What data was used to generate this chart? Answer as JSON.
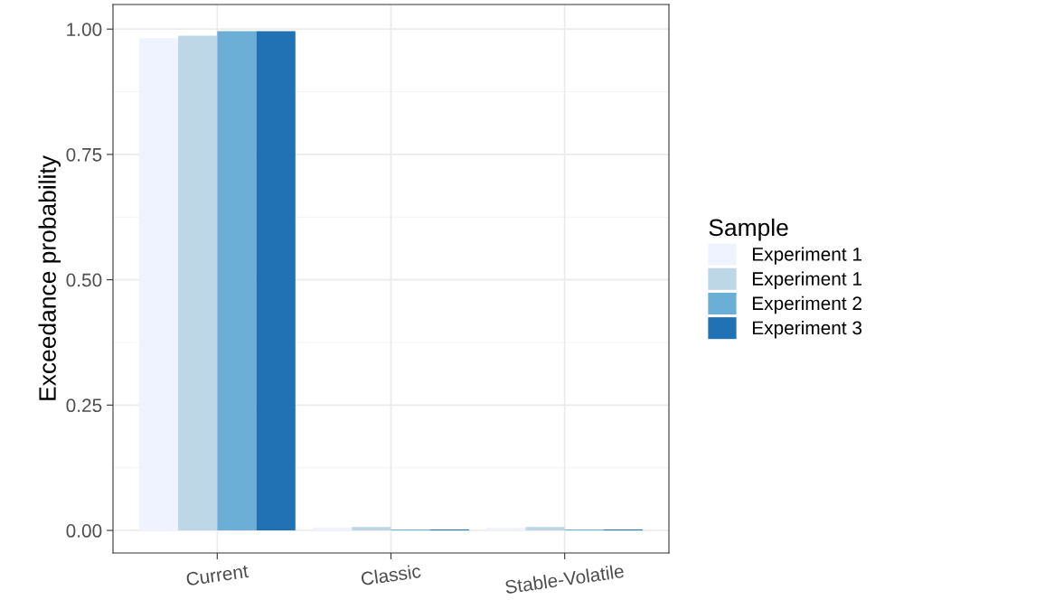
{
  "chart_data": {
    "type": "bar",
    "ylabel": "Exceedance probability",
    "legend_title": "Sample",
    "categories": [
      "Current",
      "Classic",
      "Stable-Volatile"
    ],
    "series": [
      {
        "name": "Experiment 1",
        "color": "#eff3ff",
        "values": [
          0.982,
          0.006,
          0.005
        ]
      },
      {
        "name": "Experiment 1",
        "color": "#bdd7e7",
        "values": [
          0.987,
          0.007,
          0.007
        ]
      },
      {
        "name": "Experiment 2",
        "color": "#6baed6",
        "values": [
          0.996,
          0.002,
          0.002
        ]
      },
      {
        "name": "Experiment 3",
        "color": "#2171b5",
        "values": [
          0.996,
          0.002,
          0.002
        ]
      }
    ],
    "ylim": [
      -0.045,
      1.049
    ],
    "yticks": [
      {
        "value": 0,
        "label": "0.00"
      },
      {
        "value": 0.25,
        "label": "0.25"
      },
      {
        "value": 0.5,
        "label": "0.50"
      },
      {
        "value": 0.75,
        "label": "0.75"
      },
      {
        "value": 1,
        "label": "1.00"
      }
    ],
    "grid": true,
    "legend": "right"
  }
}
